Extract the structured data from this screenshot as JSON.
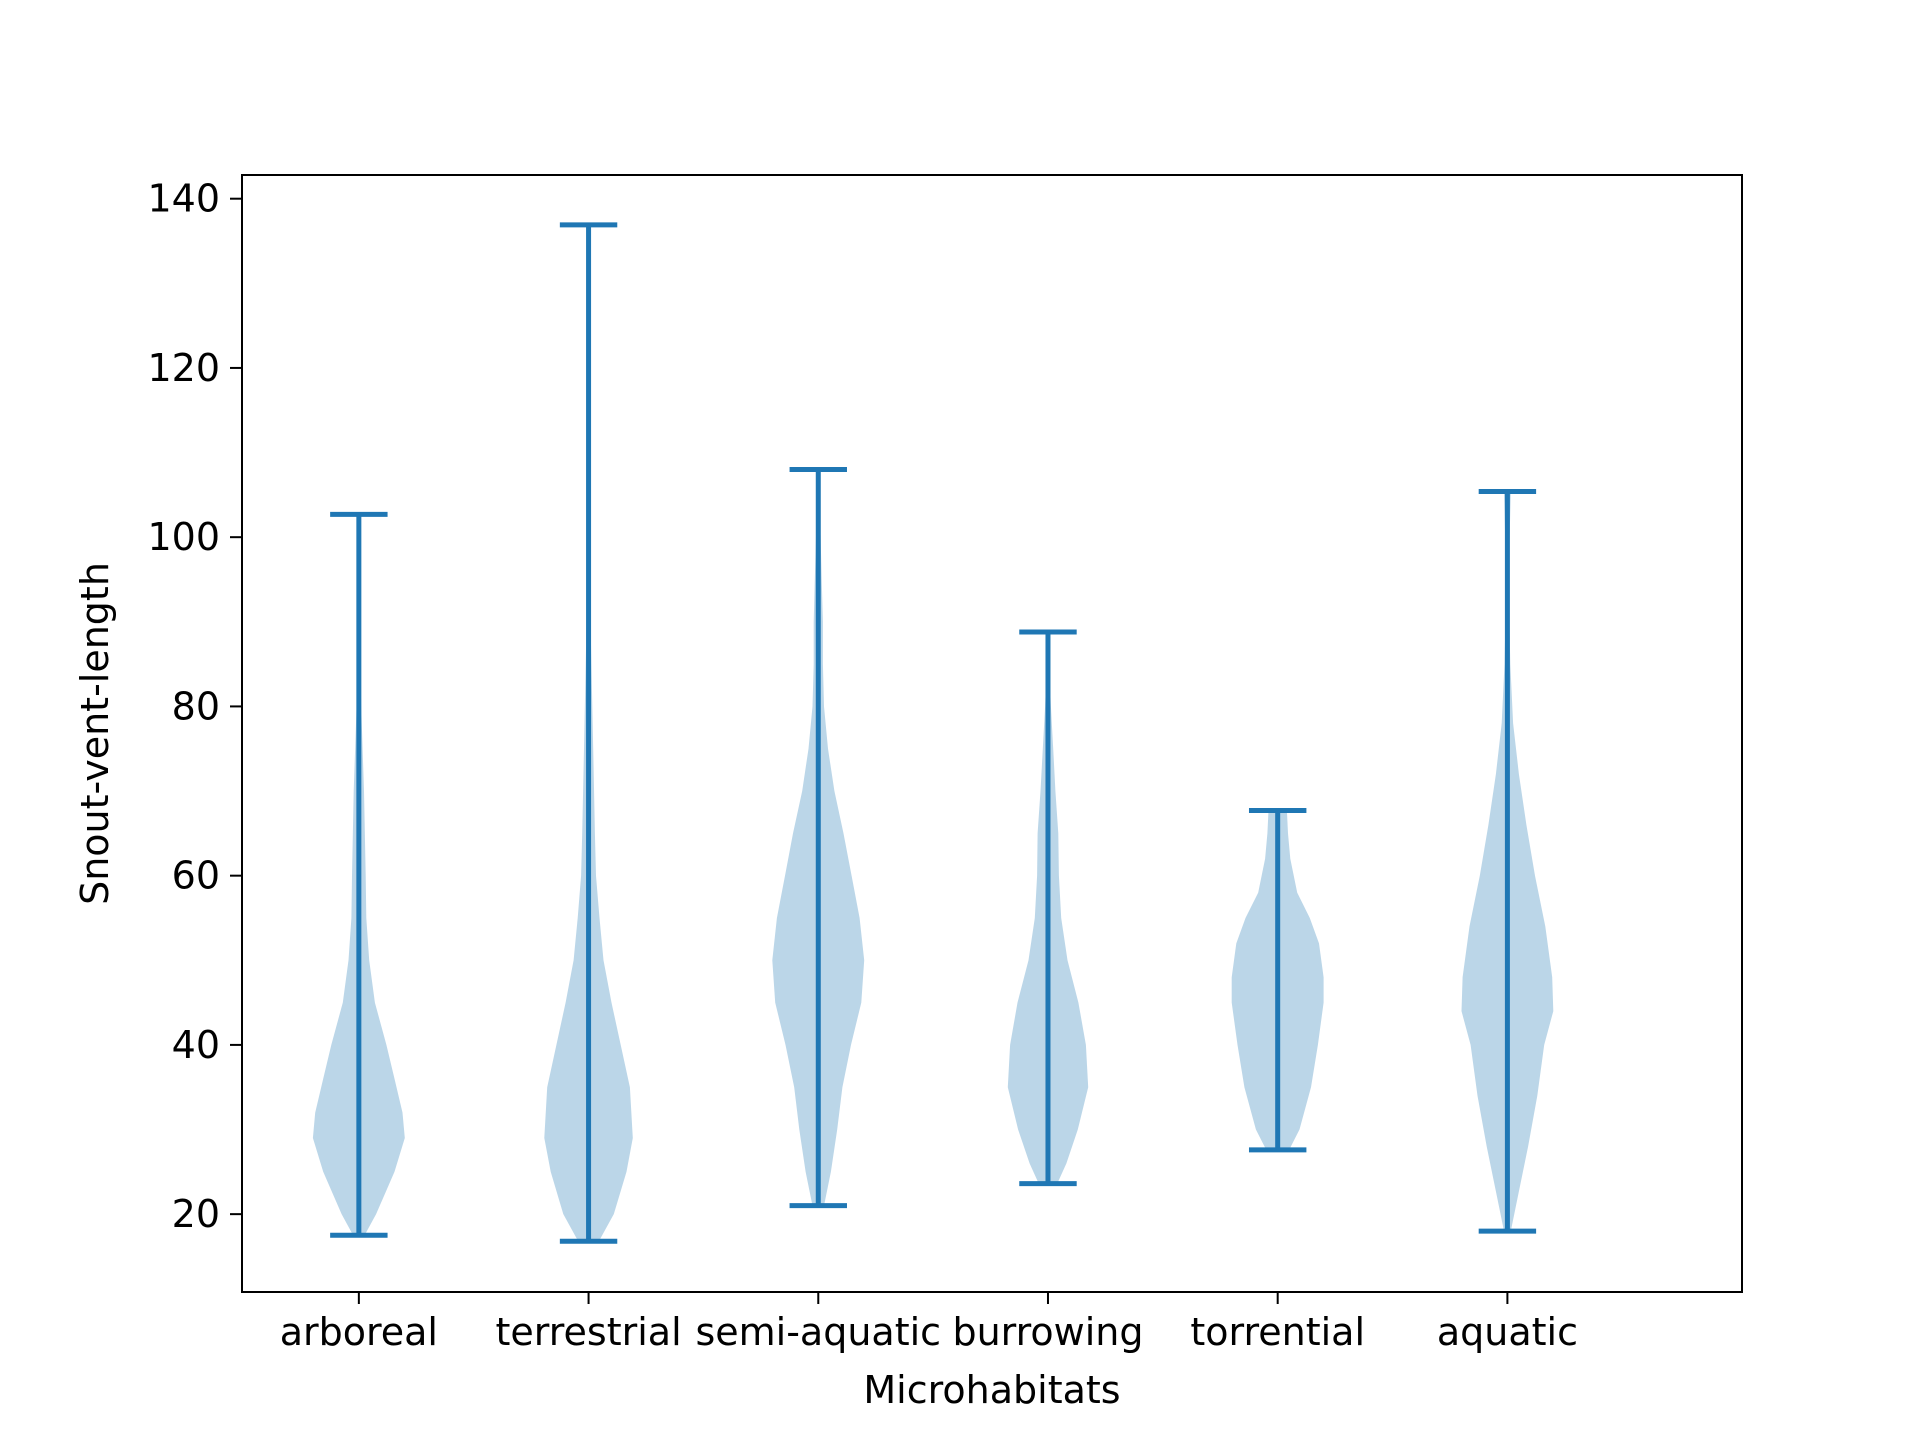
{
  "chart_data": {
    "type": "violin",
    "title": "",
    "xlabel": "Microhabitats",
    "ylabel": "Snout-vent-length",
    "ylim": [
      10.8,
      142.8
    ],
    "yticks": [
      20,
      40,
      60,
      80,
      100,
      120,
      140
    ],
    "grid": false,
    "legend": "none",
    "colors": {
      "body": "#1f77b4",
      "body_alpha": 0.3,
      "lines": "#1f77b4"
    },
    "categories": [
      "arboreal",
      "terrestrial",
      "semi-aquatic",
      "burrowing",
      "torrential",
      "aquatic"
    ],
    "series": [
      {
        "category": "arboreal",
        "min": 17.5,
        "max": 102.7,
        "profile": [
          [
            17.5,
            0.1
          ],
          [
            20,
            0.3
          ],
          [
            25,
            0.62
          ],
          [
            29,
            0.8
          ],
          [
            32,
            0.76
          ],
          [
            36,
            0.62
          ],
          [
            40,
            0.48
          ],
          [
            45,
            0.28
          ],
          [
            50,
            0.18
          ],
          [
            55,
            0.13
          ],
          [
            60,
            0.12
          ],
          [
            70,
            0.09
          ],
          [
            80,
            0.04
          ],
          [
            90,
            0.01
          ],
          [
            102.7,
            0.0
          ]
        ]
      },
      {
        "category": "terrestrial",
        "min": 16.8,
        "max": 136.9,
        "profile": [
          [
            16.8,
            0.18
          ],
          [
            20,
            0.44
          ],
          [
            25,
            0.66
          ],
          [
            29,
            0.77
          ],
          [
            35,
            0.72
          ],
          [
            40,
            0.56
          ],
          [
            45,
            0.4
          ],
          [
            50,
            0.26
          ],
          [
            55,
            0.19
          ],
          [
            60,
            0.13
          ],
          [
            65,
            0.11
          ],
          [
            75,
            0.08
          ],
          [
            85,
            0.05
          ],
          [
            95,
            0.02
          ],
          [
            110,
            0.01
          ],
          [
            136.9,
            0.0
          ]
        ]
      },
      {
        "category": "semi-aquatic",
        "min": 21.0,
        "max": 108.0,
        "profile": [
          [
            21.0,
            0.1
          ],
          [
            25,
            0.22
          ],
          [
            30,
            0.33
          ],
          [
            35,
            0.42
          ],
          [
            40,
            0.57
          ],
          [
            45,
            0.75
          ],
          [
            50,
            0.8
          ],
          [
            55,
            0.72
          ],
          [
            60,
            0.58
          ],
          [
            65,
            0.44
          ],
          [
            70,
            0.28
          ],
          [
            75,
            0.17
          ],
          [
            80,
            0.1
          ],
          [
            85,
            0.08
          ],
          [
            90,
            0.08
          ],
          [
            95,
            0.06
          ],
          [
            100,
            0.04
          ],
          [
            108.0,
            0.0
          ]
        ]
      },
      {
        "category": "burrowing",
        "min": 23.6,
        "max": 88.8,
        "profile": [
          [
            23.6,
            0.16
          ],
          [
            26,
            0.32
          ],
          [
            30,
            0.52
          ],
          [
            35,
            0.7
          ],
          [
            40,
            0.66
          ],
          [
            45,
            0.53
          ],
          [
            50,
            0.34
          ],
          [
            55,
            0.23
          ],
          [
            60,
            0.19
          ],
          [
            65,
            0.18
          ],
          [
            70,
            0.13
          ],
          [
            75,
            0.09
          ],
          [
            80,
            0.05
          ],
          [
            85,
            0.02
          ],
          [
            88.8,
            0.0
          ]
        ]
      },
      {
        "category": "torrential",
        "min": 27.6,
        "max": 67.7,
        "profile": [
          [
            27.6,
            0.2
          ],
          [
            30,
            0.38
          ],
          [
            35,
            0.58
          ],
          [
            40,
            0.7
          ],
          [
            45,
            0.8
          ],
          [
            48,
            0.8
          ],
          [
            52,
            0.72
          ],
          [
            55,
            0.56
          ],
          [
            58,
            0.34
          ],
          [
            62,
            0.22
          ],
          [
            65,
            0.18
          ],
          [
            67.7,
            0.16
          ]
        ]
      },
      {
        "category": "aquatic",
        "min": 18.0,
        "max": 105.4,
        "profile": [
          [
            18.0,
            0.06
          ],
          [
            22,
            0.18
          ],
          [
            28,
            0.36
          ],
          [
            34,
            0.52
          ],
          [
            40,
            0.64
          ],
          [
            44,
            0.8
          ],
          [
            48,
            0.78
          ],
          [
            54,
            0.66
          ],
          [
            60,
            0.48
          ],
          [
            66,
            0.33
          ],
          [
            72,
            0.2
          ],
          [
            78,
            0.1
          ],
          [
            85,
            0.05
          ],
          [
            95,
            0.02
          ],
          [
            105.4,
            0.06
          ]
        ]
      }
    ]
  }
}
